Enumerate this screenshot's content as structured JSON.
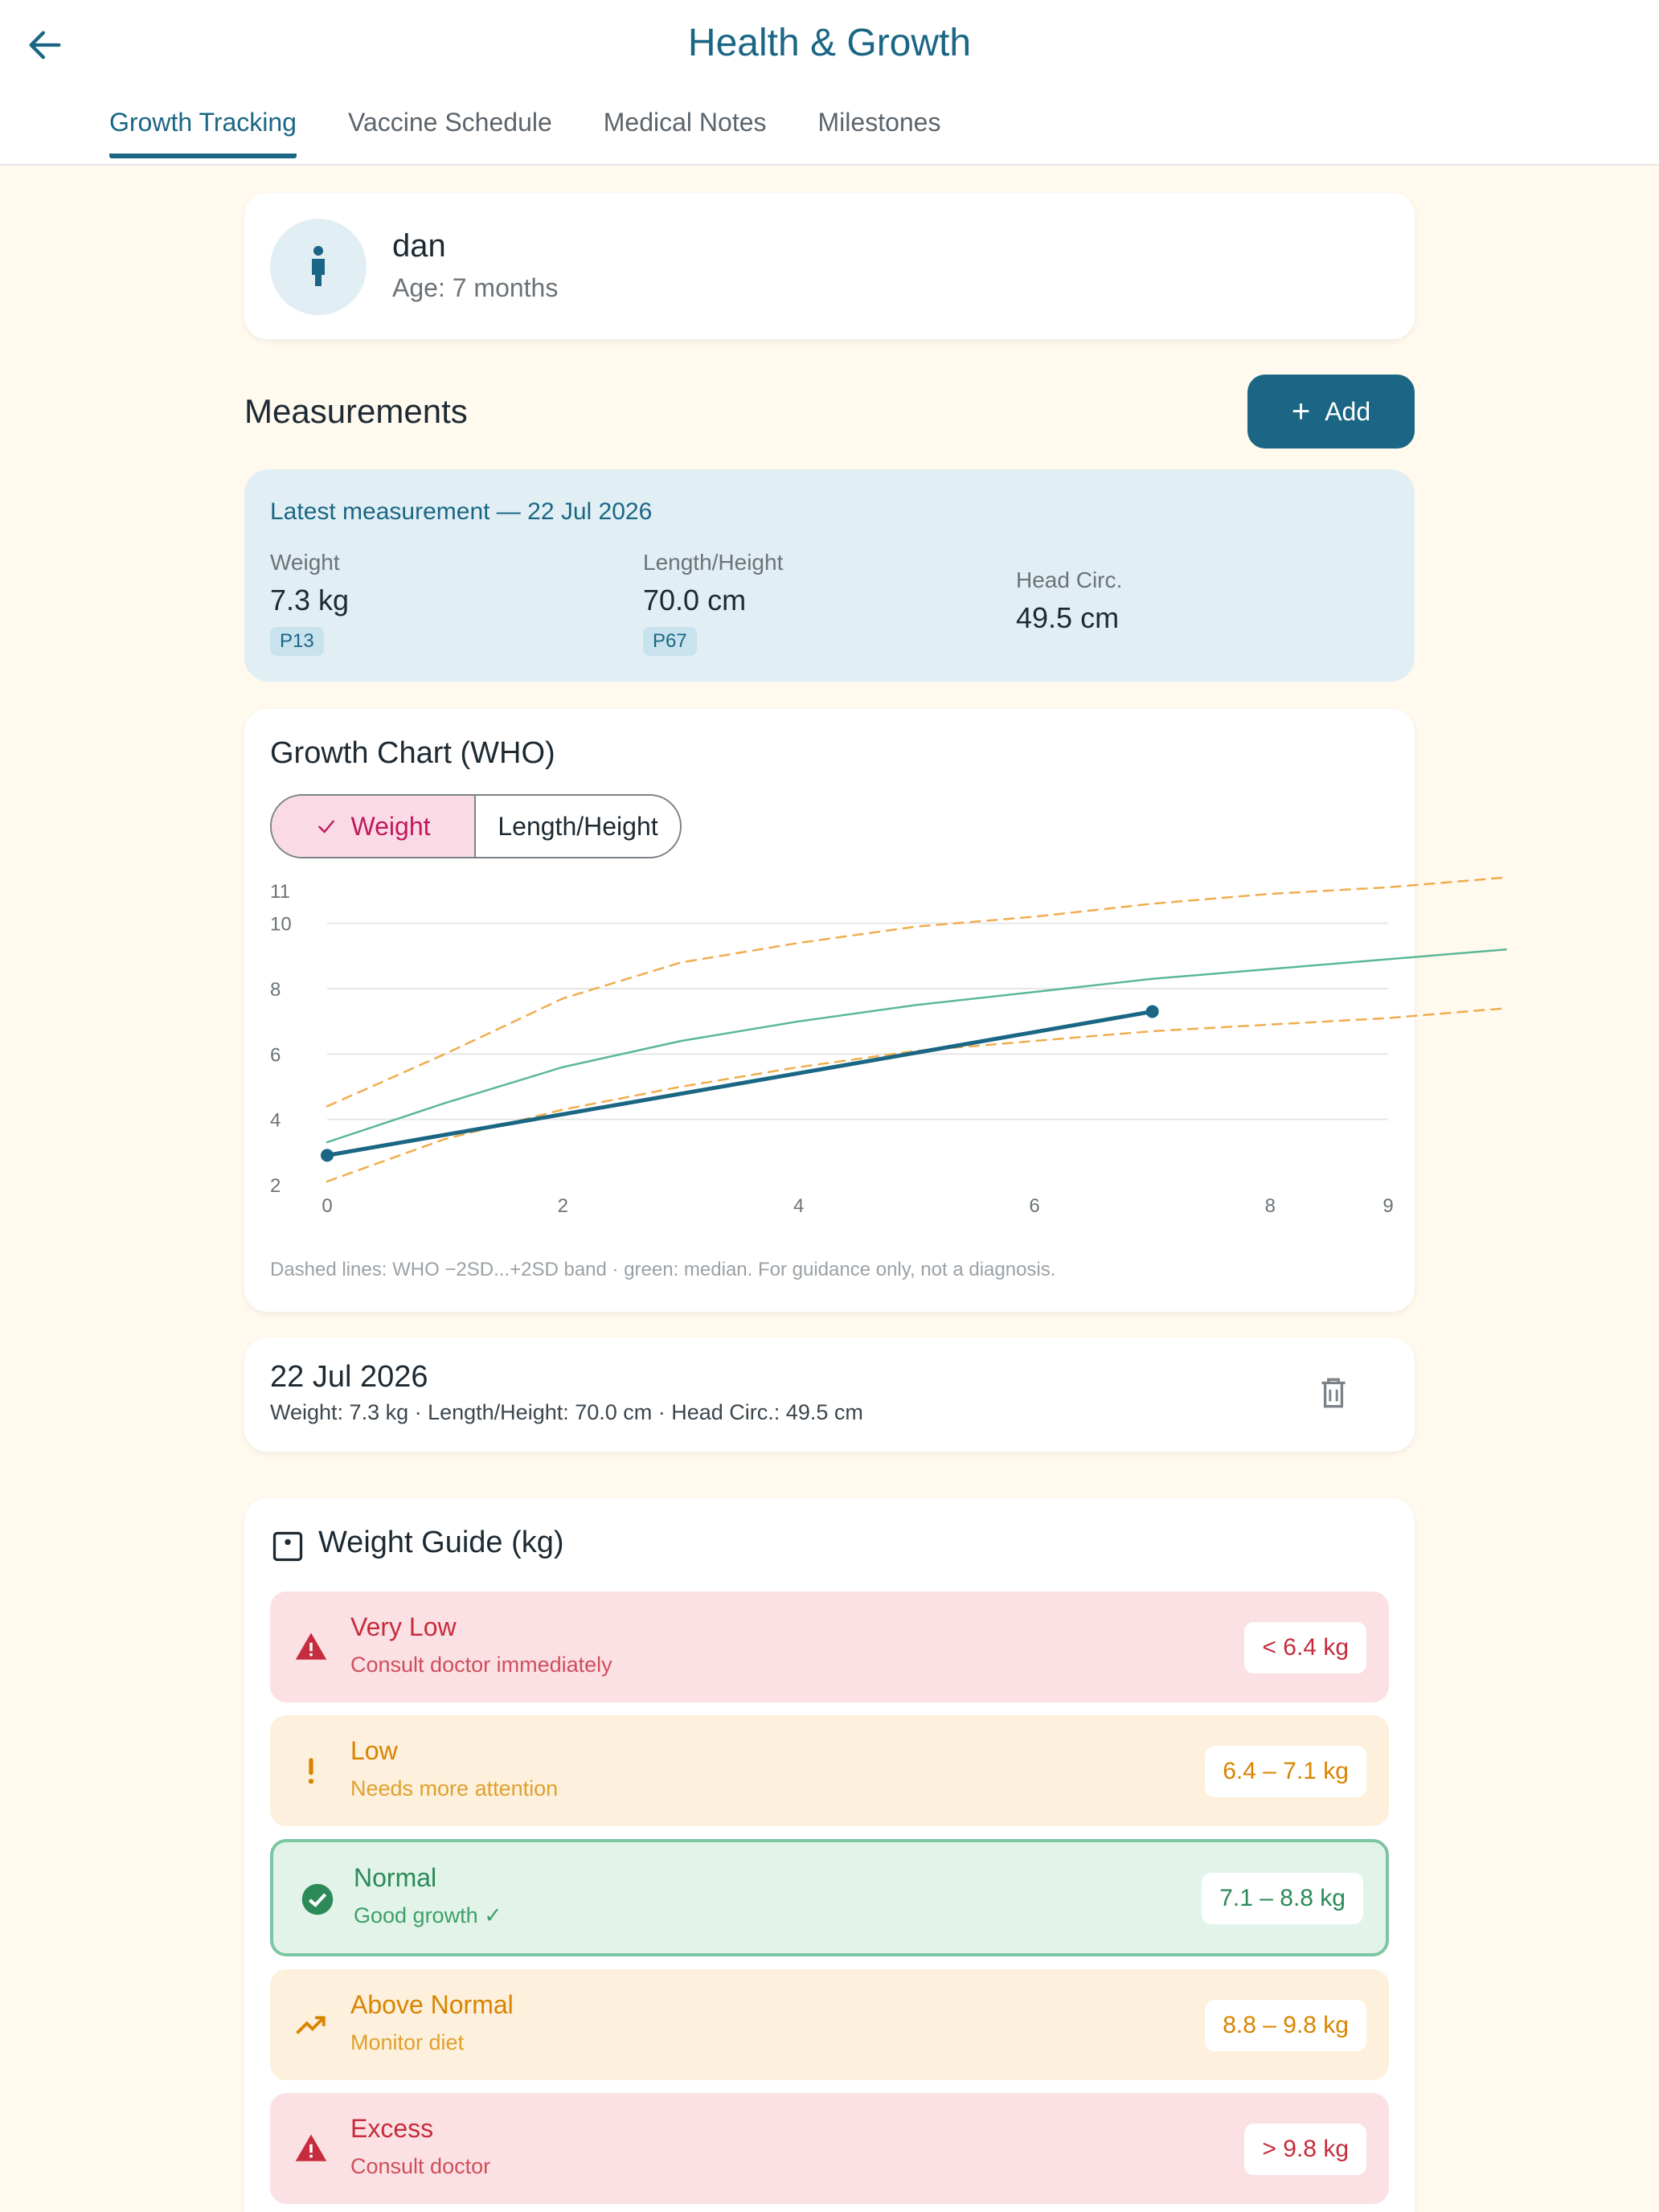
{
  "header": {
    "title": "Health & Growth",
    "tabs": [
      {
        "label": "Growth Tracking",
        "active": true
      },
      {
        "label": "Vaccine Schedule",
        "active": false
      },
      {
        "label": "Medical Notes",
        "active": false
      },
      {
        "label": "Milestones",
        "active": false
      }
    ]
  },
  "profile": {
    "name": "dan",
    "age": "Age: 7 months"
  },
  "measurements": {
    "title": "Measurements",
    "add_label": "Add"
  },
  "latest": {
    "title": "Latest measurement — 22 Jul 2026",
    "weight": {
      "label": "Weight",
      "value": "7.3 kg",
      "percentile": "P13"
    },
    "length": {
      "label": "Length/Height",
      "value": "70.0 cm",
      "percentile": "P67"
    },
    "head": {
      "label": "Head Circ.",
      "value": "49.5 cm"
    }
  },
  "chart": {
    "title": "Growth Chart (WHO)",
    "toggle_weight": "Weight",
    "toggle_length": "Length/Height",
    "note": "Dashed lines: WHO −2SD...+2SD band · green: median. For guidance only, not a diagnosis."
  },
  "chart_data": {
    "type": "line",
    "xlim": [
      0,
      9
    ],
    "ylim": [
      2,
      11
    ],
    "x_ticks": [
      0,
      2,
      4,
      6,
      8,
      9
    ],
    "y_ticks": [
      2,
      4,
      6,
      8,
      10,
      11
    ],
    "grid": true,
    "series": [
      {
        "role": "lower",
        "style": "dashed",
        "color": "#f0ad4e",
        "x": [
          0,
          1,
          2,
          3,
          4,
          5,
          6,
          7,
          8,
          9,
          10
        ],
        "y": [
          2.1,
          3.4,
          4.3,
          5.0,
          5.6,
          6.1,
          6.4,
          6.7,
          6.9,
          7.1,
          7.4
        ]
      },
      {
        "role": "upper",
        "style": "dashed",
        "color": "#f0ad4e",
        "x": [
          0,
          1,
          2,
          3,
          4,
          5,
          6,
          7,
          8,
          9,
          10
        ],
        "y": [
          4.4,
          6.0,
          7.7,
          8.8,
          9.4,
          9.9,
          10.2,
          10.6,
          10.9,
          11.1,
          11.4
        ]
      },
      {
        "role": "median",
        "style": "solid",
        "color": "#5cb896",
        "x": [
          0,
          1,
          2,
          3,
          4,
          5,
          6,
          7,
          8,
          9,
          10
        ],
        "y": [
          3.3,
          4.5,
          5.6,
          6.4,
          7.0,
          7.5,
          7.9,
          8.3,
          8.6,
          8.9,
          9.2
        ]
      },
      {
        "role": "child",
        "style": "solid",
        "color": "#1a6684",
        "x": [
          0,
          7
        ],
        "y": [
          2.9,
          7.3
        ]
      }
    ]
  },
  "entry": {
    "date": "22 Jul 2026",
    "detail": "Weight: 7.3 kg · Length/Height: 70.0 cm · Head Circ.: 49.5 cm"
  },
  "guide": {
    "title": "Weight Guide (kg)",
    "bands": [
      {
        "name": "Very Low",
        "desc": "Consult doctor immediately",
        "range": "< 6.4 kg",
        "tone": "red",
        "icon": "warning-icon"
      },
      {
        "name": "Low",
        "desc": "Needs more attention",
        "range": "6.4 – 7.1 kg",
        "tone": "amber",
        "icon": "exclamation-icon"
      },
      {
        "name": "Normal",
        "desc": "Good growth ✓",
        "range": "7.1 – 8.8 kg",
        "tone": "green",
        "icon": "check-circle-icon"
      },
      {
        "name": "Above Normal",
        "desc": "Monitor diet",
        "range": "8.8 – 9.8 kg",
        "tone": "amber",
        "icon": "trending-up-icon"
      },
      {
        "name": "Excess",
        "desc": "Consult doctor",
        "range": "> 9.8 kg",
        "tone": "red",
        "icon": "warning-icon"
      }
    ]
  }
}
